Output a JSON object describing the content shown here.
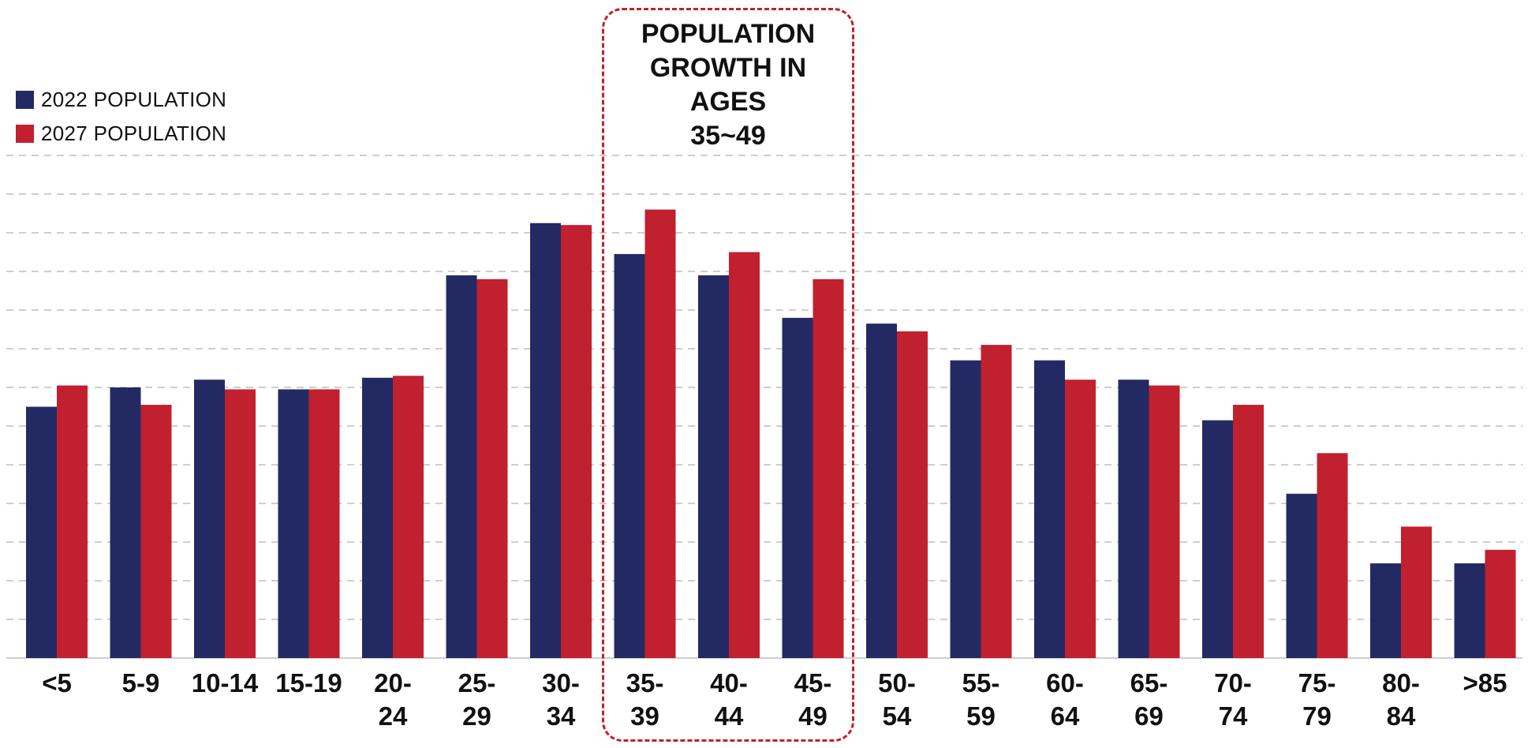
{
  "chart_data": {
    "type": "bar",
    "title": "",
    "xlabel": "",
    "ylabel": "",
    "ylim": [
      0,
      13
    ],
    "grid": true,
    "legend_position": "top-left",
    "categories": [
      "<5",
      "5-9",
      "10-14",
      "15-19",
      "20-24",
      "25-29",
      "30-34",
      "35-39",
      "40-44",
      "45-49",
      "50-54",
      "55-59",
      "60-64",
      "65-69",
      "70-74",
      "75-79",
      "80-84",
      ">85"
    ],
    "tick_lines": [
      [
        "<5"
      ],
      [
        "5-9"
      ],
      [
        "10-14"
      ],
      [
        "15-19"
      ],
      [
        "20-",
        "24"
      ],
      [
        "25-",
        "29"
      ],
      [
        "30-",
        "34"
      ],
      [
        "35-",
        "39"
      ],
      [
        "40-",
        "44"
      ],
      [
        "45-",
        "49"
      ],
      [
        "50-",
        "54"
      ],
      [
        "55-",
        "59"
      ],
      [
        "60-",
        "64"
      ],
      [
        "65-",
        "69"
      ],
      [
        "70-",
        "74"
      ],
      [
        "75-",
        "79"
      ],
      [
        "80-",
        "84"
      ],
      [
        ">85"
      ]
    ],
    "series": [
      {
        "name": "2022 POPULATION",
        "color": "#232a63",
        "values": [
          6.5,
          7.0,
          7.2,
          6.95,
          7.25,
          9.9,
          11.25,
          10.45,
          9.9,
          8.8,
          8.65,
          7.7,
          7.7,
          7.2,
          6.15,
          4.25,
          2.45,
          2.45
        ]
      },
      {
        "name": "2027 POPULATION",
        "color": "#c1202f",
        "values": [
          7.05,
          6.55,
          6.95,
          6.95,
          7.3,
          9.8,
          11.2,
          11.6,
          10.5,
          9.8,
          8.45,
          8.1,
          7.2,
          7.05,
          6.55,
          5.3,
          3.4,
          2.8
        ]
      }
    ],
    "annotations": [
      {
        "text": "POPULATION\nGROWTH IN\nAGES\n35~49",
        "highlight_categories": [
          "35-39",
          "40-44",
          "45-49"
        ]
      }
    ]
  }
}
